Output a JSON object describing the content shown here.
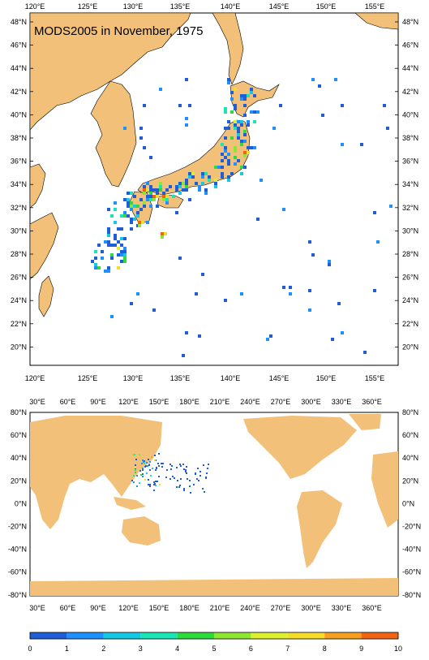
{
  "map_top": {
    "title": "MODS2005 in November, 1975",
    "lon_labels": [
      "120°E",
      "125°E",
      "130°E",
      "135°E",
      "140°E",
      "145°E",
      "150°E",
      "155°E"
    ],
    "lat_labels": [
      "48°N",
      "46°N",
      "44°N",
      "42°N",
      "40°N",
      "38°N",
      "36°N",
      "34°N",
      "32°N",
      "30°N",
      "28°N",
      "26°N",
      "24°N",
      "22°N",
      "20°N"
    ]
  },
  "map_bottom": {
    "lon_labels": [
      "30°E",
      "60°E",
      "90°E",
      "120°E",
      "150°E",
      "180°E",
      "210°E",
      "240°E",
      "270°E",
      "300°E",
      "330°E",
      "360°E"
    ],
    "lat_labels": [
      "80°N",
      "60°N",
      "40°N",
      "20°N",
      "0°N",
      "-20°N",
      "-40°N",
      "-60°N",
      "-80°N"
    ]
  },
  "colorbar": {
    "labels": [
      "0",
      "1",
      "2",
      "3",
      "4",
      "5",
      "6",
      "7",
      "8",
      "9",
      "10"
    ],
    "colors": [
      "#1f5ed8",
      "#1e90ff",
      "#14c8e6",
      "#19e6b4",
      "#2ddc3c",
      "#8ce632",
      "#dcf032",
      "#f5dc28",
      "#f5a01e",
      "#f06414"
    ]
  },
  "land_color": "#f2c078"
}
